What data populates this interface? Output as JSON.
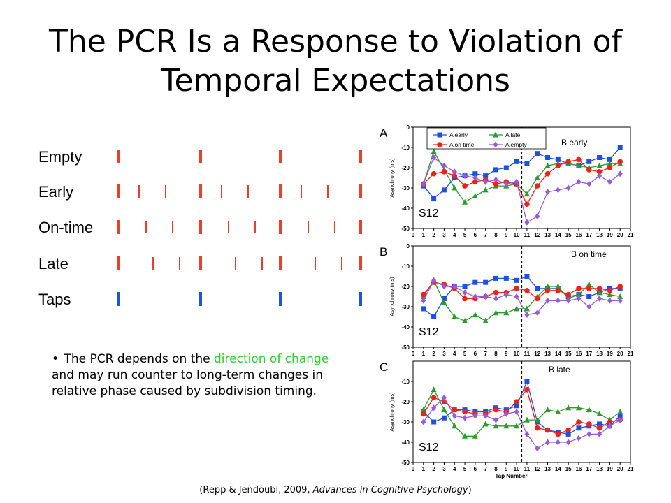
{
  "slide": {
    "title_line1": "The PCR Is a Response to Violation of",
    "title_line2": "Temporal Expectations",
    "bullet_pre": "The PCR depends on the ",
    "bullet_highlight": "direction of change",
    "bullet_post": " and may run counter to long-term changes in relative phase caused by subdivision timing.",
    "citation_pre": "(Repp & Jendoubi, 2009, ",
    "citation_italic": "Advances in Cognitive Psychology",
    "citation_post": ")"
  },
  "timeline": {
    "rows": [
      "Empty",
      "Early",
      "On-time",
      "Late",
      "Taps"
    ],
    "beat_color": "#e8402a",
    "sub_color": "#e8402a",
    "tap_color": "#1a56d6"
  },
  "colors": {
    "early": "#1f4fe0",
    "late": "#2e9a2e",
    "on_time": "#e8241a",
    "empty": "#9b59d9",
    "highlight": "#33cc33"
  },
  "chart_data": [
    {
      "type": "line",
      "panel_letter": "A",
      "panel_title": "B early",
      "subject": "S12",
      "ylabel": "Asynchrony (ms)",
      "xlabel": "",
      "ylim": [
        -50,
        0
      ],
      "yticks": [
        0,
        -10,
        -20,
        -30,
        -40,
        -50
      ],
      "xticks": [
        0,
        1,
        2,
        3,
        4,
        5,
        6,
        7,
        8,
        9,
        10,
        11,
        12,
        13,
        14,
        15,
        16,
        17,
        18,
        19,
        20,
        21
      ],
      "x": [
        1,
        2,
        3,
        4,
        5,
        6,
        7,
        8,
        9,
        10,
        11,
        12,
        13,
        14,
        15,
        16,
        17,
        18,
        19,
        20
      ],
      "change_point": 10.5,
      "legend": [
        "A early",
        "A late",
        "A on time",
        "A empty"
      ],
      "series": [
        {
          "name": "A early",
          "key": "early",
          "marker": "square",
          "values": [
            -29,
            -35,
            -31,
            -25,
            -24,
            -23,
            -24,
            -21,
            -20,
            -17,
            -18,
            -13,
            -15,
            -16,
            -18,
            -19,
            -17,
            -15,
            -16,
            -10
          ]
        },
        {
          "name": "A late",
          "key": "late",
          "marker": "triangle",
          "values": [
            -28,
            -12,
            -21,
            -30,
            -37,
            -34,
            -31,
            -29,
            -29,
            -28,
            -33,
            -25,
            -19,
            -18,
            -18,
            -19,
            -20,
            -19,
            -18,
            -18
          ]
        },
        {
          "name": "A on time",
          "key": "on_time",
          "marker": "circle",
          "values": [
            -28,
            -23,
            -22,
            -24,
            -29,
            -27,
            -26,
            -28,
            -27,
            -28,
            -38,
            -29,
            -23,
            -19,
            -17,
            -16,
            -21,
            -22,
            -20,
            -17
          ]
        },
        {
          "name": "A empty",
          "key": "empty",
          "marker": "diamond",
          "values": [
            -28,
            -15,
            -19,
            -22,
            -24,
            -25,
            -27,
            -26,
            -28,
            -27,
            -47,
            -44,
            -32,
            -31,
            -30,
            -27,
            -28,
            -24,
            -27,
            -23
          ]
        }
      ]
    },
    {
      "type": "line",
      "panel_letter": "B",
      "panel_title": "B on time",
      "subject": "S12",
      "ylabel": "Asynchrony (ms)",
      "xlabel": "",
      "ylim": [
        -50,
        0
      ],
      "yticks": [
        0,
        -10,
        -20,
        -30,
        -40,
        -50
      ],
      "xticks": [
        0,
        1,
        2,
        3,
        4,
        5,
        6,
        7,
        8,
        9,
        10,
        11,
        12,
        13,
        14,
        15,
        16,
        17,
        18,
        19,
        20,
        21
      ],
      "x": [
        1,
        2,
        3,
        4,
        5,
        6,
        7,
        8,
        9,
        10,
        11,
        12,
        13,
        14,
        15,
        16,
        17,
        18,
        19,
        20
      ],
      "change_point": 10.5,
      "legend": [],
      "series": [
        {
          "name": "A early",
          "key": "early",
          "marker": "square",
          "values": [
            -31,
            -35,
            -26,
            -20,
            -20,
            -18,
            -18,
            -16,
            -16,
            -17,
            -15,
            -21,
            -21,
            -21,
            -25,
            -24,
            -25,
            -23,
            -21,
            -21
          ]
        },
        {
          "name": "A late",
          "key": "late",
          "marker": "triangle",
          "values": [
            -25,
            -17,
            -28,
            -35,
            -37,
            -34,
            -37,
            -33,
            -33,
            -31,
            -31,
            -25,
            -20,
            -20,
            -26,
            -24,
            -19,
            -23,
            -24,
            -25
          ]
        },
        {
          "name": "A on time",
          "key": "on_time",
          "marker": "circle",
          "values": [
            -24,
            -18,
            -19,
            -21,
            -26,
            -26,
            -25,
            -23,
            -23,
            -21,
            -22,
            -26,
            -22,
            -22,
            -24,
            -21,
            -21,
            -21,
            -22,
            -20
          ]
        },
        {
          "name": "A empty",
          "key": "empty",
          "marker": "diamond",
          "values": [
            -27,
            -17,
            -20,
            -20,
            -23,
            -25,
            -25,
            -26,
            -24,
            -25,
            -34,
            -33,
            -27,
            -27,
            -27,
            -26,
            -30,
            -26,
            -27,
            -27
          ]
        }
      ]
    },
    {
      "type": "line",
      "panel_letter": "C",
      "panel_title": "B late",
      "subject": "S12",
      "ylabel": "Asynchrony (ms)",
      "xlabel": "Tap Number",
      "ylim": [
        -50,
        0
      ],
      "yticks": [
        -10,
        -20,
        -30,
        -40,
        -50
      ],
      "xticks": [
        0,
        1,
        2,
        3,
        4,
        5,
        6,
        7,
        8,
        9,
        10,
        11,
        12,
        13,
        14,
        15,
        16,
        17,
        18,
        19,
        20,
        21
      ],
      "x": [
        1,
        2,
        3,
        4,
        5,
        6,
        7,
        8,
        9,
        10,
        11,
        12,
        13,
        14,
        15,
        16,
        17,
        18,
        19,
        20
      ],
      "change_point": 10.5,
      "legend": [],
      "series": [
        {
          "name": "A early",
          "key": "early",
          "marker": "square",
          "values": [
            -25,
            -30,
            -28,
            -24,
            -24,
            -25,
            -25,
            -23,
            -24,
            -22,
            -10,
            -30,
            -34,
            -35,
            -36,
            -33,
            -32,
            -31,
            -32,
            -27
          ]
        },
        {
          "name": "A late",
          "key": "late",
          "marker": "triangle",
          "values": [
            -24,
            -14,
            -24,
            -32,
            -37,
            -37,
            -31,
            -32,
            -32,
            -32,
            -29,
            -29,
            -24,
            -25,
            -23,
            -23,
            -24,
            -26,
            -29,
            -25
          ]
        },
        {
          "name": "A on time",
          "key": "on_time",
          "marker": "circle",
          "values": [
            -26,
            -18,
            -20,
            -24,
            -25,
            -26,
            -26,
            -24,
            -25,
            -20,
            -14,
            -33,
            -34,
            -36,
            -34,
            -30,
            -31,
            -33,
            -30,
            -29
          ]
        },
        {
          "name": "A empty",
          "key": "empty",
          "marker": "diamond",
          "values": [
            -30,
            -23,
            -18,
            -27,
            -28,
            -27,
            -27,
            -29,
            -26,
            -25,
            -36,
            -43,
            -40,
            -40,
            -40,
            -38,
            -36,
            -36,
            -32,
            -29
          ]
        }
      ]
    }
  ]
}
